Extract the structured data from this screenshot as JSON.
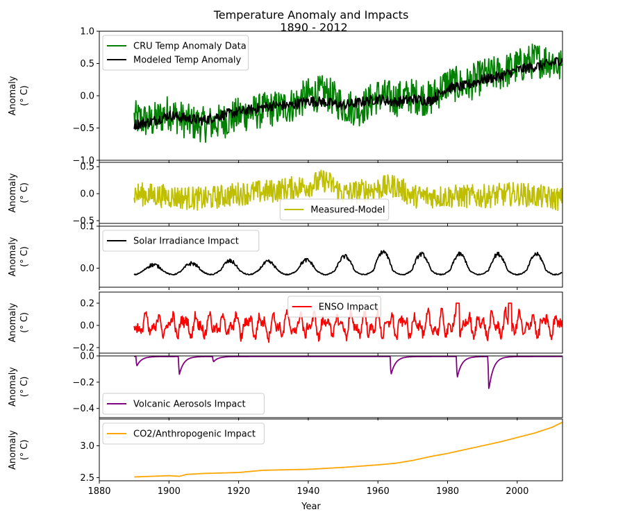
{
  "chart_data": {
    "type": "line",
    "title": "Temperature Anomaly and Impacts",
    "subtitle": "1890 - 2012",
    "xlabel": "Year",
    "xlim": [
      1880,
      2013
    ],
    "x_ticks": [
      "1880",
      "1900",
      "1920",
      "1940",
      "1960",
      "1980",
      "2000"
    ],
    "panels": [
      {
        "id": "temp",
        "ylabel": [
          "Anomaly",
          "(° C)"
        ],
        "ylim": [
          -1.0,
          1.0
        ],
        "y_ticks": [
          "1.0",
          "0.5",
          "0.0",
          "−0.5",
          "−1.0"
        ],
        "legend_position": "upper-left",
        "series": [
          {
            "name": "CRU Temp Anomaly Data",
            "color": "#008000",
            "x": [
              1890,
              1895,
              1900,
              1905,
              1910,
              1915,
              1920,
              1925,
              1930,
              1935,
              1940,
              1945,
              1950,
              1955,
              1960,
              1965,
              1970,
              1975,
              1980,
              1985,
              1990,
              1995,
              2000,
              2005,
              2010,
              2012
            ],
            "y": [
              -0.35,
              -0.4,
              -0.25,
              -0.4,
              -0.45,
              -0.4,
              -0.3,
              -0.25,
              -0.2,
              -0.15,
              0.0,
              0.05,
              -0.15,
              -0.2,
              0.0,
              -0.05,
              0.0,
              -0.05,
              0.2,
              0.15,
              0.3,
              0.35,
              0.45,
              0.55,
              0.55,
              0.45
            ],
            "noise": 0.28
          },
          {
            "name": "Modeled Temp Anomaly",
            "color": "#000000",
            "x": [
              1890,
              1895,
              1900,
              1905,
              1910,
              1915,
              1920,
              1925,
              1930,
              1935,
              1940,
              1945,
              1950,
              1955,
              1960,
              1965,
              1970,
              1975,
              1980,
              1985,
              1990,
              1995,
              2000,
              2005,
              2010,
              2012
            ],
            "y": [
              -0.45,
              -0.4,
              -0.3,
              -0.35,
              -0.38,
              -0.3,
              -0.25,
              -0.2,
              -0.15,
              -0.15,
              -0.08,
              -0.1,
              -0.15,
              -0.1,
              -0.05,
              -0.1,
              -0.05,
              -0.08,
              0.12,
              0.15,
              0.25,
              0.3,
              0.4,
              0.45,
              0.5,
              0.55
            ],
            "noise": 0.08
          }
        ]
      },
      {
        "id": "resid",
        "ylabel": [
          "Anomaly",
          "(° C)"
        ],
        "ylim": [
          -0.55,
          0.58
        ],
        "y_ticks": [
          "0.5",
          "0.0",
          "−0.5"
        ],
        "legend_position": "lower-center",
        "series": [
          {
            "name": "Measured-Model",
            "color": "#bfbf00",
            "x": [
              1890,
              1900,
              1910,
              1920,
              1930,
              1940,
              1945,
              1950,
              1960,
              1965,
              1970,
              1980,
              1990,
              2000,
              2012
            ],
            "y": [
              0.0,
              -0.05,
              -0.1,
              0.0,
              0.05,
              0.15,
              0.25,
              0.0,
              0.1,
              0.15,
              -0.05,
              -0.05,
              -0.05,
              0.0,
              -0.1
            ],
            "noise": 0.22
          }
        ]
      },
      {
        "id": "solar",
        "ylabel": [
          "Anomaly",
          "(° C)"
        ],
        "ylim": [
          -0.045,
          0.1
        ],
        "y_ticks": [
          "0.1",
          "0.0"
        ],
        "legend_position": "upper-left",
        "series": [
          {
            "name": "Solar Irradiance Impact",
            "color": "#000000",
            "model": "solar_cycle",
            "base": -0.005,
            "amp": [
              0.012,
              0.015,
              0.02,
              0.018,
              0.022,
              0.03,
              0.04,
              0.035,
              0.035,
              0.035,
              0.035,
              0.03
            ],
            "noise": 0.008
          }
        ]
      },
      {
        "id": "enso",
        "ylabel": [
          "Anomaly",
          "(° C)"
        ],
        "ylim": [
          -0.25,
          0.3
        ],
        "y_ticks": [
          "0.2",
          "0.0",
          "−0.2"
        ],
        "legend_position": "upper-center",
        "series": [
          {
            "name": "ENSO Impact",
            "color": "#ff0000",
            "model": "enso",
            "noise": 0.09
          }
        ]
      },
      {
        "id": "volcanic",
        "ylabel": [
          "Anomaly",
          "(° C)"
        ],
        "ylim": [
          -0.47,
          0.0
        ],
        "y_ticks": [
          "0.0",
          "−0.2",
          "−0.4"
        ],
        "legend_position": "lower-left",
        "series": [
          {
            "name": "Volcanic Aerosols Impact",
            "color": "#800080",
            "model": "volcanic",
            "eruptions": [
              {
                "year": 1890.5,
                "depth": -0.09
              },
              {
                "year": 1902.7,
                "depth": -0.17
              },
              {
                "year": 1912.5,
                "depth": -0.05
              },
              {
                "year": 1963.5,
                "depth": -0.17
              },
              {
                "year": 1982.5,
                "depth": -0.2
              },
              {
                "year": 1991.6,
                "depth": -0.31
              }
            ]
          }
        ]
      },
      {
        "id": "co2",
        "ylabel": [
          "Anomaly",
          "(° C)"
        ],
        "ylim": [
          2.45,
          3.42
        ],
        "y_ticks": [
          "3.0",
          "2.5"
        ],
        "legend_position": "upper-left",
        "series": [
          {
            "name": "CO2/Anthropogenic Impact",
            "color": "#ffa500",
            "x": [
              1890,
              1900,
              1903,
              1905,
              1910,
              1920,
              1927,
              1940,
              1950,
              1960,
              1965,
              1970,
              1975,
              1980,
              1985,
              1990,
              1995,
              2000,
              2005,
              2010,
              2013
            ],
            "y": [
              2.51,
              2.53,
              2.52,
              2.55,
              2.565,
              2.58,
              2.615,
              2.63,
              2.66,
              2.7,
              2.725,
              2.77,
              2.83,
              2.88,
              2.94,
              3.0,
              3.06,
              3.13,
              3.2,
              3.29,
              3.37
            ],
            "noise": 0.0
          }
        ]
      }
    ]
  }
}
